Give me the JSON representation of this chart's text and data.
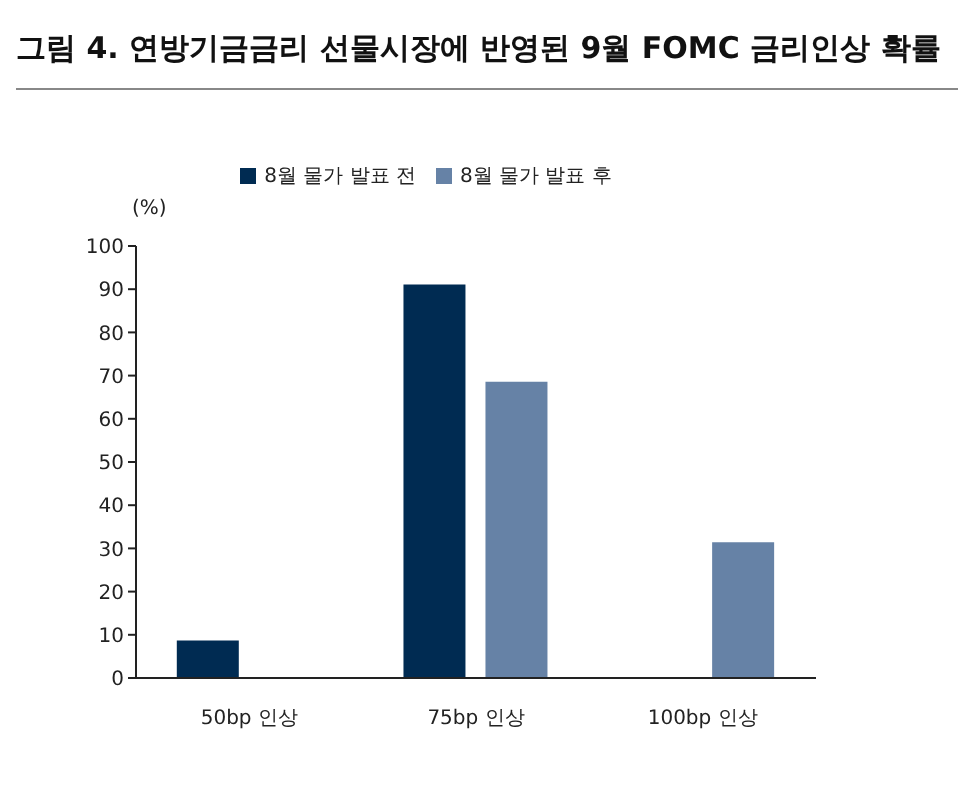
{
  "chart_data": {
    "type": "bar",
    "title": "그림 4. 연방기금금리 선물시장에 반영된 9월 FOMC 금리인상 확률",
    "ylabel": "(%)",
    "categories": [
      "50bp 인상",
      "75bp 인상",
      "100bp 인상"
    ],
    "series": [
      {
        "name": "8월 물가 발표 전",
        "color": "#002b52",
        "values": [
          8.7,
          91.1,
          0
        ]
      },
      {
        "name": "8월 물가 발표 후",
        "color": "#6682a6",
        "values": [
          0,
          68.6,
          31.4
        ]
      }
    ],
    "ylim": [
      0,
      100
    ],
    "yticks": [
      0,
      10,
      20,
      30,
      40,
      50,
      60,
      70,
      80,
      90,
      100
    ],
    "grid": false,
    "legend": "top"
  }
}
